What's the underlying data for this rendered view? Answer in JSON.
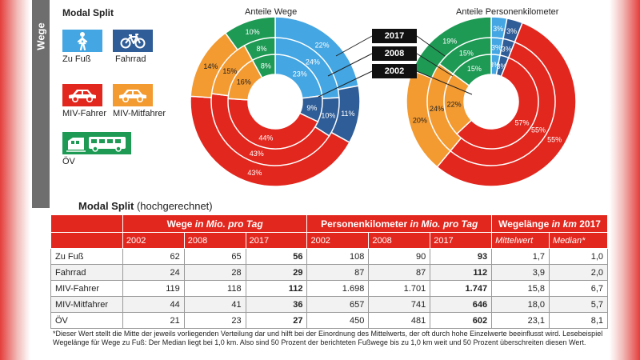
{
  "section_label": "Wege",
  "legend": {
    "title": "Modal Split",
    "items": [
      {
        "label": "Zu Fuß",
        "icon": "pedestrian-icon",
        "color": "#44a6e2"
      },
      {
        "label": "Fahrrad",
        "icon": "bicycle-icon",
        "color": "#2f5d97"
      },
      {
        "label": "MIV-Fahrer",
        "icon": "car-driver-icon",
        "color": "#e2271e"
      },
      {
        "label": "MIV-Mitfahrer",
        "icon": "car-passenger-icon",
        "color": "#f39a31"
      },
      {
        "label": "ÖV",
        "icon": "bus-train-icon",
        "color": "#1e9a55"
      }
    ]
  },
  "chart_data": [
    {
      "type": "pie",
      "subtype": "multi-ring donut",
      "title": "Anteile Wege",
      "categories": [
        "Zu Fuß",
        "Fahrrad",
        "MIV-Fahrer",
        "MIV-Mitfahrer",
        "ÖV"
      ],
      "series": [
        {
          "name": "2017",
          "values": [
            22,
            11,
            43,
            14,
            10
          ],
          "labels": [
            "22%",
            "11%",
            "43%",
            "14%",
            "10%"
          ]
        },
        {
          "name": "2008",
          "values": [
            24,
            10,
            43,
            15,
            8
          ],
          "labels": [
            "24%",
            "10%",
            "43%",
            "15%",
            "8%"
          ]
        },
        {
          "name": "2002",
          "values": [
            23,
            9,
            44,
            16,
            8
          ],
          "labels": [
            "23%",
            "9%",
            "44%",
            "16%",
            "8%"
          ]
        }
      ]
    },
    {
      "type": "pie",
      "subtype": "multi-ring donut",
      "title": "Anteile Personenkilometer",
      "categories": [
        "Zu Fuß",
        "Fahrrad",
        "MIV-Fahrer",
        "MIV-Mitfahrer",
        "ÖV"
      ],
      "series": [
        {
          "name": "2017",
          "values": [
            3,
            3,
            55,
            20,
            19
          ],
          "labels": [
            "3%",
            "3%",
            "55%",
            "20%",
            "19%"
          ]
        },
        {
          "name": "2008",
          "values": [
            3,
            3,
            55,
            24,
            15
          ],
          "labels": [
            "3%",
            "3%",
            "55%",
            "24%",
            "15%"
          ]
        },
        {
          "name": "2002",
          "values": [
            3,
            3,
            57,
            22,
            15
          ],
          "labels": [
            "3%",
            "3%",
            "57%",
            "22%",
            "15%"
          ]
        }
      ]
    }
  ],
  "year_labels": [
    "2017",
    "2008",
    "2002"
  ],
  "table": {
    "title_bold": "Modal Split",
    "title_rest": " (hochgerechnet)",
    "groups": [
      {
        "label": "",
        "italic_part": ""
      },
      {
        "label": "Wege ",
        "italic_part": "in Mio. pro Tag"
      },
      {
        "label": "Personenkilometer ",
        "italic_part": "in Mio. pro Tag"
      },
      {
        "label": "Wegelänge ",
        "italic_part": "in km",
        "tail": " 2017"
      }
    ],
    "subheaders": [
      "2002",
      "2008",
      "2017",
      "2002",
      "2008",
      "2017",
      "Mittelwert",
      "Median*"
    ],
    "rows": [
      {
        "name": "Zu Fuß",
        "cells": [
          "62",
          "65",
          "56",
          "108",
          "90",
          "93",
          "1,7",
          "1,0"
        ]
      },
      {
        "name": "Fahrrad",
        "cells": [
          "24",
          "28",
          "29",
          "87",
          "87",
          "112",
          "3,9",
          "2,0"
        ]
      },
      {
        "name": "MIV-Fahrer",
        "cells": [
          "119",
          "118",
          "112",
          "1.698",
          "1.701",
          "1.747",
          "15,8",
          "6,7"
        ]
      },
      {
        "name": "MIV-Mitfahrer",
        "cells": [
          "44",
          "41",
          "36",
          "657",
          "741",
          "646",
          "18,0",
          "5,7"
        ]
      },
      {
        "name": "ÖV",
        "cells": [
          "21",
          "23",
          "27",
          "450",
          "481",
          "602",
          "23,1",
          "8,1"
        ]
      }
    ]
  },
  "footnote": "*Dieser Wert stellt die Mitte der jeweils vorliegenden Verteilung dar und hilft bei der Einordnung des Mittelwerts, der oft durch hohe Einzelwerte beeinflusst wird. Lesebeispiel Wegelänge für Wege zu Fuß: Der Median liegt bei 1,0 km. Also sind 50 Prozent der berichteten Fußwege bis zu 1,0 km weit und 50 Prozent überschreiten diesen Wert."
}
